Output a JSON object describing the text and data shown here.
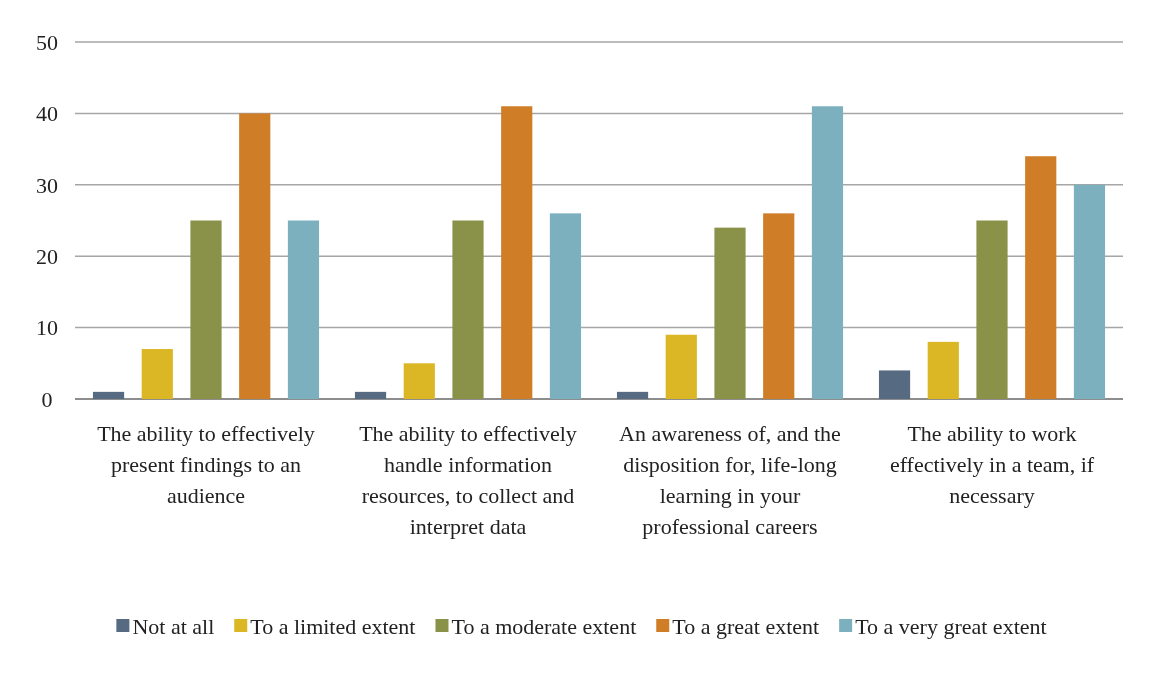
{
  "chart_data": {
    "type": "bar",
    "categories": [
      "The ability to effectively present findings to an audience",
      "The ability to effectively handle information resources, to collect and interpret data",
      "An awareness of, and the disposition for, life-long learning in your professional careers",
      "The ability to work effectively in a team, if necessary"
    ],
    "series": [
      {
        "name": "Not at all",
        "color": "#566a82",
        "values": [
          1,
          1,
          1,
          4
        ]
      },
      {
        "name": "To a limited extent",
        "color": "#dbb726",
        "values": [
          7,
          5,
          9,
          8
        ]
      },
      {
        "name": "To a moderate extent",
        "color": "#8a9149",
        "values": [
          25,
          25,
          24,
          25
        ]
      },
      {
        "name": "To a great extent",
        "color": "#cf7d26",
        "values": [
          40,
          41,
          26,
          34
        ]
      },
      {
        "name": "To a very great extent",
        "color": "#7cb0bf",
        "values": [
          25,
          26,
          41,
          30
        ]
      }
    ],
    "ylim": [
      0,
      50
    ],
    "yticks": [
      0,
      10,
      20,
      30,
      40,
      50
    ],
    "grid": "y",
    "legend": "bottom"
  }
}
